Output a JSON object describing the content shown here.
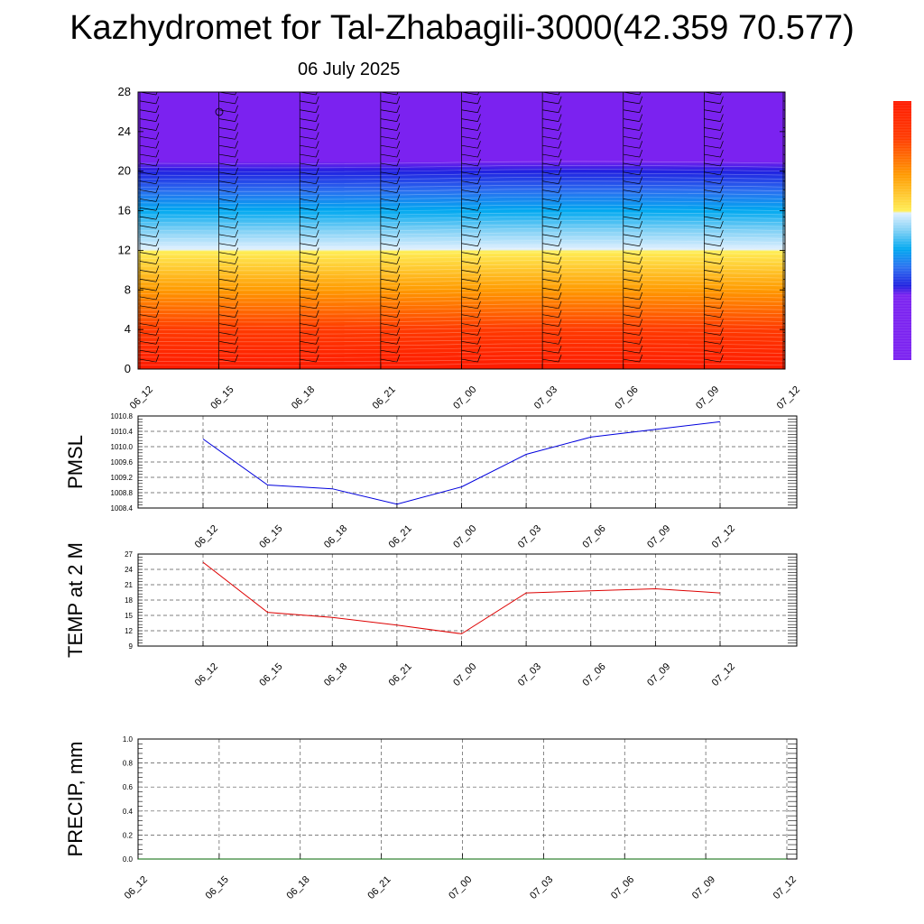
{
  "title": "Kazhydromet for Tal-Zhabagili-3000(42.359 70.577)",
  "subtitle": "06 July 2025",
  "colors": {
    "pmsl_line": "#0000dd",
    "temp_line": "#dd0000",
    "precip_line": "#006600",
    "grid": "#555555"
  },
  "chart_data": [
    {
      "type": "heatmap",
      "description": "time-height cross section with wind barbs",
      "x_categories": [
        "06_12",
        "06_15",
        "06_18",
        "06_21",
        "07_00",
        "07_03",
        "07_06",
        "07_09",
        "07_12"
      ],
      "ylim": [
        0,
        28
      ],
      "yticks": [
        0,
        4,
        8,
        12,
        16,
        20,
        24,
        28
      ],
      "color_scale_stops": [
        {
          "level": 0,
          "color": "#ff1a00"
        },
        {
          "level": 4,
          "color": "#ff3a00"
        },
        {
          "level": 8,
          "color": "#ff9a00"
        },
        {
          "level": 11.9,
          "color": "#ffee55"
        },
        {
          "level": 12.1,
          "color": "#e0f0ff"
        },
        {
          "level": 14,
          "color": "#7fd0f5"
        },
        {
          "level": 16,
          "color": "#00a8f0"
        },
        {
          "level": 18,
          "color": "#2a6ff0"
        },
        {
          "level": 20,
          "color": "#2020e0"
        },
        {
          "level": 21,
          "color": "#7b22f0"
        },
        {
          "level": 28,
          "color": "#7b22f0"
        }
      ],
      "wind_barbs": true
    },
    {
      "type": "line",
      "ylabel": "PMSL",
      "x": [
        "06_12",
        "06_15",
        "06_18",
        "06_21",
        "07_00",
        "07_03",
        "07_06",
        "07_09",
        "07_12"
      ],
      "y": [
        1010.2,
        1009.0,
        1008.9,
        1008.5,
        1008.95,
        1009.8,
        1010.25,
        1010.45,
        1010.65
      ],
      "ylim": [
        1008.4,
        1010.8
      ],
      "yticks": [
        "1008.4",
        "1008.8",
        "1009.2",
        "1009.6",
        "1010.0",
        "1010.4",
        "1010.8"
      ],
      "grid": true
    },
    {
      "type": "line",
      "ylabel": "TEMP at 2 M",
      "x": [
        "06_12",
        "06_15",
        "06_18",
        "06_21",
        "07_00",
        "07_03",
        "07_06",
        "07_09",
        "07_12"
      ],
      "y": [
        25.4,
        15.6,
        14.6,
        13.1,
        11.4,
        19.4,
        19.8,
        20.2,
        19.4
      ],
      "ylim": [
        9,
        27
      ],
      "yticks": [
        "9",
        "12",
        "15",
        "18",
        "21",
        "24",
        "27"
      ],
      "grid": true
    },
    {
      "type": "line",
      "ylabel": "PRECIP, mm",
      "x": [
        "06_12",
        "06_15",
        "06_18",
        "06_21",
        "07_00",
        "07_03",
        "07_06",
        "07_09",
        "07_12"
      ],
      "y": [
        0,
        0,
        0,
        0,
        0,
        0,
        0,
        0,
        0
      ],
      "ylim": [
        0,
        1
      ],
      "yticks": [
        "0.0",
        "0.2",
        "0.4",
        "0.6",
        "0.8",
        "1.0"
      ],
      "grid": true
    }
  ]
}
